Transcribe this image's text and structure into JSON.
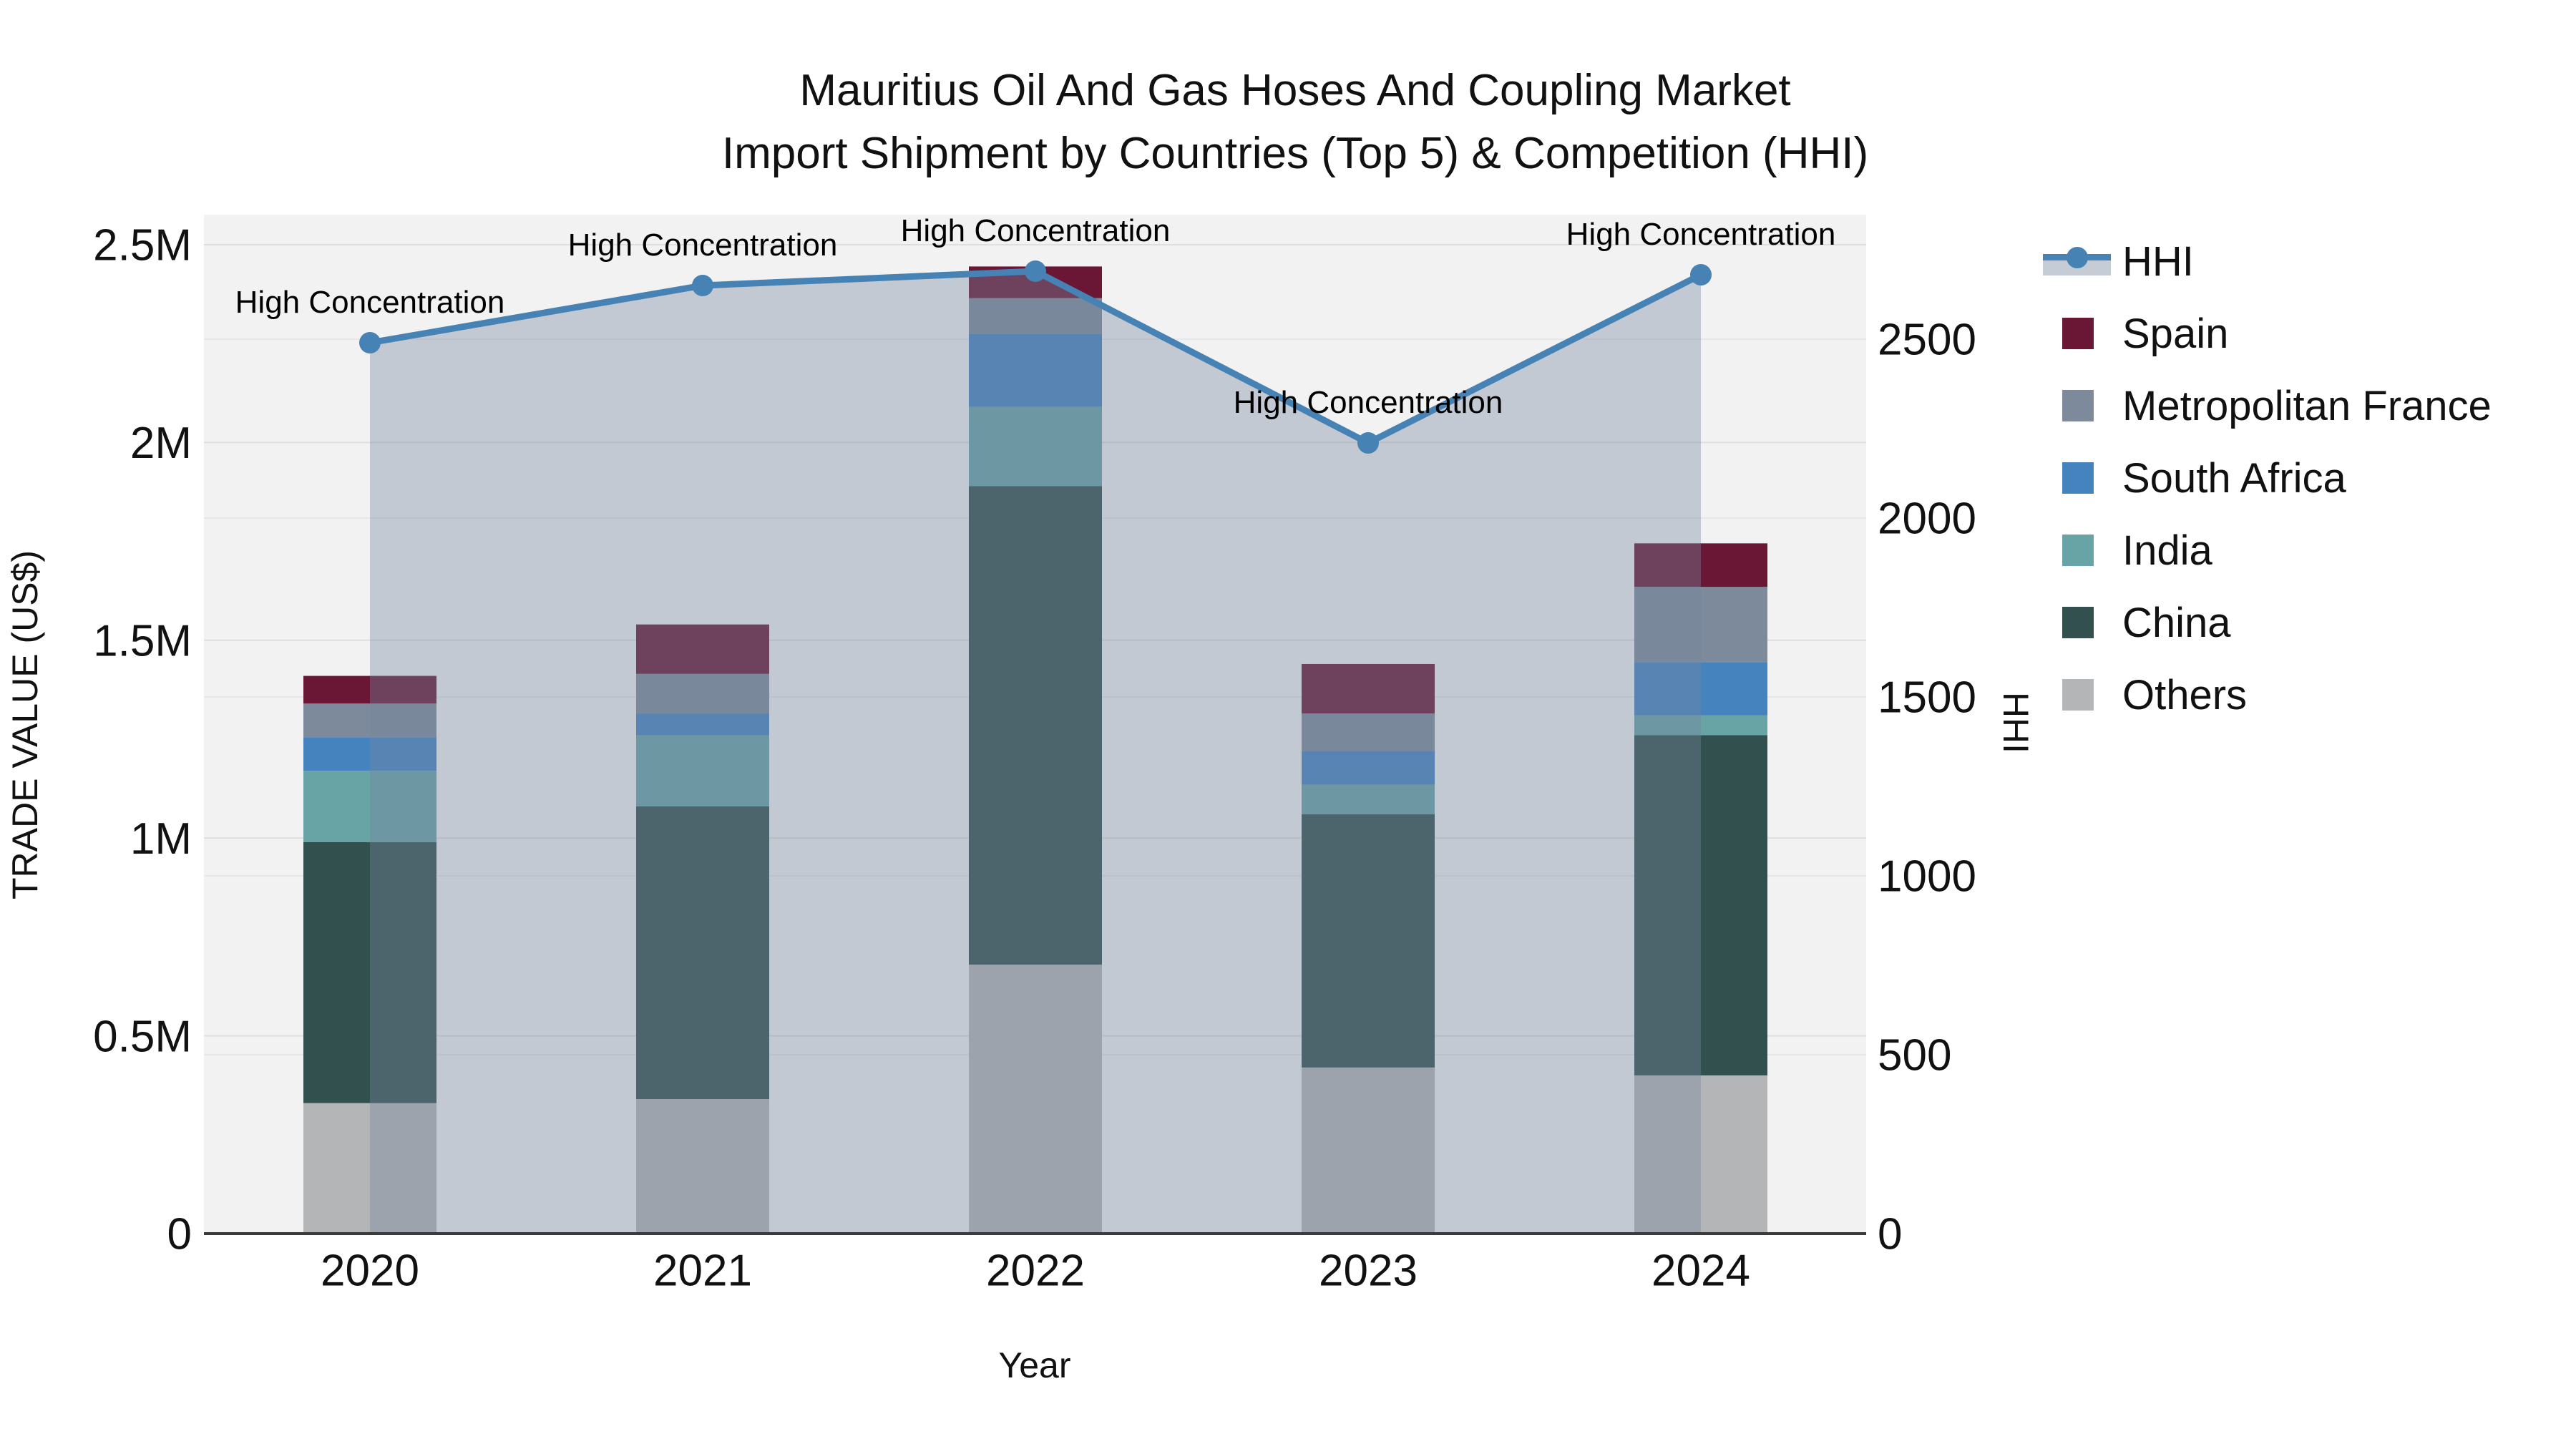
{
  "title": {
    "line1": "Mauritius Oil And Gas Hoses And Coupling Market",
    "line2": "Import Shipment by Countries (Top 5) & Competition (HHI)"
  },
  "axes": {
    "left": {
      "title": "TRADE VALUE (US$)",
      "ticks": [
        "0",
        "0.5M",
        "1M",
        "1.5M",
        "2M",
        "2.5M"
      ],
      "tick_values_musd": [
        0,
        0.5,
        1,
        1.5,
        2,
        2.5
      ]
    },
    "right": {
      "title": "HHI",
      "ticks": [
        "0",
        "500",
        "1000",
        "1500",
        "2000",
        "2500"
      ],
      "tick_values": [
        0,
        500,
        1000,
        1500,
        2000,
        2500
      ]
    },
    "x": {
      "title": "Year",
      "categories": [
        "2020",
        "2021",
        "2022",
        "2023",
        "2024"
      ]
    }
  },
  "legend": {
    "items": [
      {
        "label": "HHI",
        "type": "line",
        "color": "#4682b4",
        "fill_color": "#c5ccd6"
      },
      {
        "label": "Spain",
        "type": "square",
        "color": "#6a1736"
      },
      {
        "label": "Metropolitan France",
        "type": "square",
        "color": "#7c8a9c"
      },
      {
        "label": "South Africa",
        "type": "square",
        "color": "#4583bf"
      },
      {
        "label": "India",
        "type": "square",
        "color": "#68a4a6"
      },
      {
        "label": "China",
        "type": "square",
        "color": "#32504e"
      },
      {
        "label": "Others",
        "type": "square",
        "color": "#b4b5b7"
      }
    ]
  },
  "chart_data": {
    "type": "bar+line",
    "title": "Mauritius Oil And Gas Hoses And Coupling Market — Import Shipment by Countries (Top 5) & Competition (HHI)",
    "categories": [
      "2020",
      "2021",
      "2022",
      "2023",
      "2024"
    ],
    "bar_unit": "million US$ (left axis, TRADE VALUE)",
    "stack_order_bottom_to_top": [
      "Others",
      "China",
      "India",
      "South Africa",
      "Metropolitan France",
      "Spain"
    ],
    "series": [
      {
        "name": "Others",
        "color": "#b4b5b7",
        "values": [
          0.33,
          0.34,
          0.68,
          0.42,
          0.4
        ]
      },
      {
        "name": "China",
        "color": "#32504e",
        "values": [
          0.66,
          0.74,
          1.21,
          0.64,
          0.86
        ]
      },
      {
        "name": "India",
        "color": "#68a4a6",
        "values": [
          0.18,
          0.18,
          0.2,
          0.075,
          0.05
        ]
      },
      {
        "name": "South Africa",
        "color": "#4583bf",
        "values": [
          0.085,
          0.055,
          0.185,
          0.085,
          0.135
        ]
      },
      {
        "name": "Metropolitan France",
        "color": "#7c8a9c",
        "values": [
          0.085,
          0.1,
          0.09,
          0.095,
          0.19
        ]
      },
      {
        "name": "Spain",
        "color": "#6a1736",
        "values": [
          0.07,
          0.125,
          0.08,
          0.125,
          0.11
        ]
      }
    ],
    "bar_totals_musd": [
      1.41,
      1.54,
      2.45,
      1.44,
      1.75
    ],
    "line": {
      "name": "HHI",
      "axis": "right",
      "color": "#4682b4",
      "area_fill_color": "#76879e",
      "marker": "circle",
      "values": [
        2490,
        2650,
        2690,
        2210,
        2680
      ]
    },
    "annotations": [
      "High Concentration",
      "High Concentration",
      "High Concentration",
      "High Concentration",
      "High Concentration"
    ],
    "ylim_left_musd": [
      0,
      2.58
    ],
    "ylim_right": [
      0,
      2848
    ],
    "grid": true,
    "legend_position": "right",
    "plot_bg_color": "#f2f2f2"
  }
}
